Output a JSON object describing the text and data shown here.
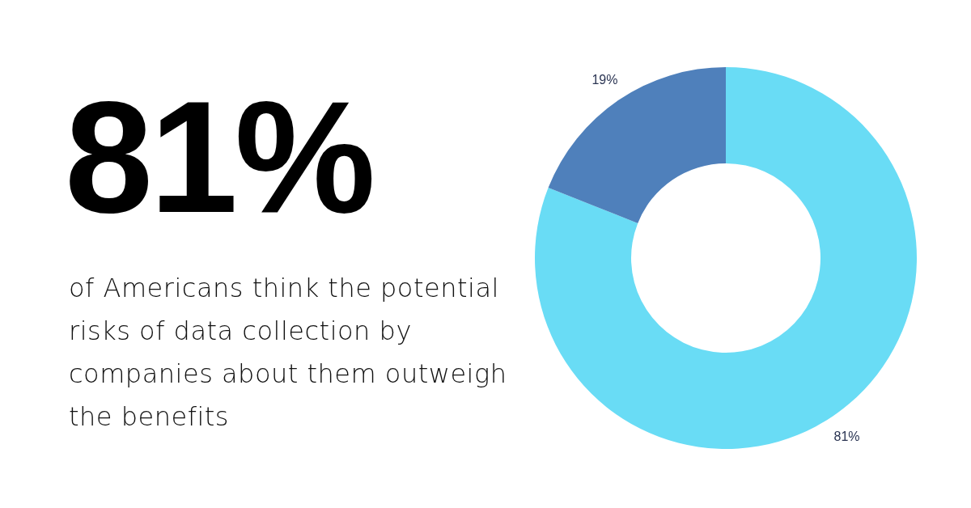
{
  "chart_data": {
    "type": "donut",
    "title": "81%",
    "subtitle": "of Americans think the potential risks of data collection by companies about them outweigh the benefits",
    "categories": [
      null,
      null
    ],
    "values": [
      81,
      19
    ],
    "colors": [
      "#69dcf5",
      "#4f80bb"
    ],
    "value_labels": [
      "81%",
      "19%"
    ]
  }
}
